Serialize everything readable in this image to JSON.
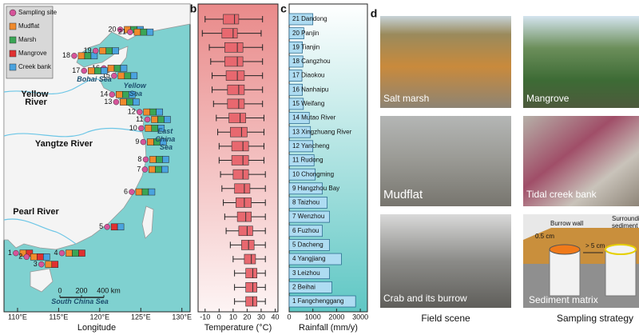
{
  "map": {
    "legend": [
      {
        "name": "Sampling site",
        "color": "#d6549a"
      },
      {
        "name": "Mudflat",
        "color": "#f08a2c"
      },
      {
        "name": "Marsh",
        "color": "#3aa655"
      },
      {
        "name": "Mangrove",
        "color": "#e03030"
      },
      {
        "name": "Creek bank",
        "color": "#4aa3df"
      }
    ],
    "x_label": "Longitude",
    "xlim": [
      108.35,
      131
    ],
    "ylim": [
      17.4,
      42.05
    ],
    "xticks": [
      {
        "value": 110,
        "label": "110°E"
      },
      {
        "value": 115,
        "label": "115°E"
      },
      {
        "value": 120,
        "label": "120°E"
      },
      {
        "value": 125,
        "label": "125°E"
      },
      {
        "value": 130,
        "label": "130°E"
      }
    ],
    "sites": [
      {
        "label": "1",
        "lon": 109.8,
        "lat": 22.1,
        "habitats": [
          1,
          3
        ]
      },
      {
        "label": "2",
        "lon": 111.1,
        "lat": 21.8,
        "habitats": [
          1,
          3,
          4
        ]
      },
      {
        "label": "3",
        "lon": 112.9,
        "lat": 21.2,
        "habitats": [
          1,
          3
        ]
      },
      {
        "label": "4",
        "lon": 115.4,
        "lat": 22.1,
        "habitats": [
          1,
          2,
          3
        ]
      },
      {
        "label": "5",
        "lon": 120.9,
        "lat": 24.2,
        "habitats": [
          3,
          4
        ]
      },
      {
        "label": "6",
        "lon": 123.9,
        "lat": 27.0,
        "habitats": [
          1,
          2,
          4
        ]
      },
      {
        "label": "7",
        "lon": 125.5,
        "lat": 28.8,
        "habitats": [
          1,
          2,
          4
        ]
      },
      {
        "label": "8",
        "lon": 125.6,
        "lat": 29.6,
        "habitats": [
          1,
          2,
          4
        ]
      },
      {
        "label": "9",
        "lon": 125.3,
        "lat": 31.0,
        "habitats": [
          1,
          2,
          4
        ]
      },
      {
        "label": "10",
        "lon": 125.05,
        "lat": 32.1,
        "habitats": [
          1,
          2,
          4
        ]
      },
      {
        "label": "11",
        "lon": 125.8,
        "lat": 32.8,
        "habitats": [
          1,
          2,
          4
        ]
      },
      {
        "label": "12",
        "lon": 124.85,
        "lat": 33.4,
        "habitats": [
          1,
          2,
          4
        ]
      },
      {
        "label": "13",
        "lon": 122.0,
        "lat": 34.2,
        "habitats": [
          1,
          2,
          4
        ]
      },
      {
        "label": "14",
        "lon": 121.5,
        "lat": 34.8,
        "habitats": [
          1,
          2,
          4
        ]
      },
      {
        "label": "15",
        "lon": 121.75,
        "lat": 36.3,
        "habitats": [
          1,
          2,
          4
        ]
      },
      {
        "label": "16",
        "lon": 120.5,
        "lat": 36.9,
        "habitats": [
          1,
          2,
          4
        ]
      },
      {
        "label": "17",
        "lon": 118.1,
        "lat": 36.7,
        "habitats": [
          1,
          2,
          4
        ]
      },
      {
        "label": "18",
        "lon": 116.9,
        "lat": 37.9,
        "habitats": [
          1,
          2,
          4
        ]
      },
      {
        "label": "19",
        "lon": 119.5,
        "lat": 38.3,
        "habitats": [
          1,
          2,
          4
        ]
      },
      {
        "label": "20",
        "lon": 122.5,
        "lat": 40.0,
        "habitats": [
          1,
          2,
          4
        ]
      },
      {
        "label": "21",
        "lon": 123.7,
        "lat": 39.8,
        "habitats": [
          1,
          2,
          4
        ]
      }
    ],
    "seas": [
      "Bohai Sea",
      "Yellow Sea",
      "East China Sea",
      "South China Sea"
    ],
    "rivers": [
      "Yellow River",
      "Yangtze River",
      "Pearl River"
    ],
    "scale_bar": [
      "0",
      "200",
      "400 km"
    ]
  },
  "chart_data": [
    {
      "type": "box",
      "x_label": "Temperature (°C)",
      "xlim": [
        -15,
        42
      ],
      "xticks": [
        -10,
        0,
        10,
        20,
        30,
        40
      ],
      "color": "#e8686f",
      "boxes": [
        {
          "min": -10,
          "q1": 3,
          "median": 11,
          "q3": 14,
          "max": 31
        },
        {
          "min": -12,
          "q1": 2,
          "median": 10,
          "q3": 13,
          "max": 30
        },
        {
          "min": -7,
          "q1": 4,
          "median": 13,
          "q3": 17,
          "max": 31
        },
        {
          "min": -6,
          "q1": 4,
          "median": 13,
          "q3": 17,
          "max": 31
        },
        {
          "min": -5,
          "q1": 5,
          "median": 13,
          "q3": 18,
          "max": 31
        },
        {
          "min": -5,
          "q1": 6,
          "median": 14,
          "q3": 18,
          "max": 31
        },
        {
          "min": -4,
          "q1": 6,
          "median": 14,
          "q3": 18,
          "max": 31
        },
        {
          "min": -2,
          "q1": 7,
          "median": 15,
          "q3": 19,
          "max": 32
        },
        {
          "min": -1,
          "q1": 8,
          "median": 16,
          "q3": 20,
          "max": 32
        },
        {
          "min": 0,
          "q1": 9,
          "median": 17,
          "q3": 21,
          "max": 32
        },
        {
          "min": 0,
          "q1": 9,
          "median": 17,
          "q3": 21,
          "max": 32
        },
        {
          "min": 1,
          "q1": 10,
          "median": 17,
          "q3": 21,
          "max": 33
        },
        {
          "min": 2,
          "q1": 11,
          "median": 18,
          "q3": 22,
          "max": 33
        },
        {
          "min": 3,
          "q1": 12,
          "median": 18,
          "q3": 23,
          "max": 33
        },
        {
          "min": 4,
          "q1": 13,
          "median": 19,
          "q3": 23,
          "max": 33
        },
        {
          "min": 5,
          "q1": 14,
          "median": 20,
          "q3": 24,
          "max": 33
        },
        {
          "min": 8,
          "q1": 16,
          "median": 21,
          "q3": 25,
          "max": 33
        },
        {
          "min": 10,
          "q1": 18,
          "median": 23,
          "q3": 26,
          "max": 33
        },
        {
          "min": 11,
          "q1": 19,
          "median": 24,
          "q3": 27,
          "max": 33
        },
        {
          "min": 11,
          "q1": 19,
          "median": 24,
          "q3": 27,
          "max": 33
        },
        {
          "min": 11,
          "q1": 19,
          "median": 24,
          "q3": 27,
          "max": 33
        }
      ]
    },
    {
      "type": "bar",
      "x_label": "Rainfall (mm/y)",
      "xlim": [
        0,
        3300
      ],
      "xticks": [
        0,
        1000,
        2000,
        3000
      ],
      "color": "#aedcf2",
      "categories": [
        "21 Dandong",
        "20 Panjin",
        "19 Tianjin",
        "18 Cangzhou",
        "17 Diaokou",
        "16 Nanhaipu",
        "15 Weifang",
        "14 Mutao River",
        "13 Xingzhuang River",
        "12 Yancheng",
        "11 Rudong",
        "10 Chongming",
        "9 Hangzhou Bay",
        "8 Taizhou",
        "7 Wenzhou",
        "6 Fuzhou",
        "5 Dacheng",
        "4 Yangjiang",
        "3 Leizhou",
        "2 Beihai",
        "1 Fangchenggang"
      ],
      "values": [
        1000,
        620,
        560,
        580,
        540,
        560,
        600,
        850,
        900,
        1000,
        1050,
        1100,
        1400,
        1600,
        1700,
        1400,
        1700,
        2200,
        1700,
        1800,
        2800
      ]
    }
  ],
  "photos": {
    "captions": [
      "Salt marsh",
      "Mangrove",
      "Mudflat",
      "Tidal creek bank",
      "Crab and its burrow",
      "Sediment matrix"
    ],
    "strategy_labels": [
      "Burrow wall",
      "0.5 cm",
      "> 5 cm",
      "Surrounding sediment"
    ],
    "column_titles": [
      "Field scene",
      "Sampling strategy"
    ]
  },
  "panel_labels": [
    "b",
    "c",
    "d"
  ]
}
